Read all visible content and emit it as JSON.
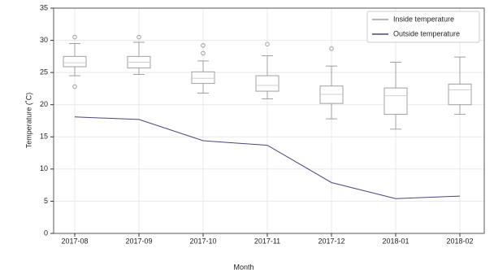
{
  "chart_data": {
    "type": "box",
    "xlabel": "Month",
    "ylabel": "Temperature (˚C)",
    "categories": [
      "2017-08",
      "2017-09",
      "2017-10",
      "2017-11",
      "2017-12",
      "2018-01",
      "2018-02"
    ],
    "ylim": [
      0,
      35
    ],
    "yticks": [
      0,
      5,
      10,
      15,
      20,
      25,
      30,
      35
    ],
    "grid": true,
    "legend": "upper right",
    "series": [
      {
        "name": "Inside temperature",
        "type": "box",
        "color": "#a0a0a0",
        "whislo": [
          24.5,
          24.7,
          21.8,
          20.9,
          17.8,
          16.2,
          18.5
        ],
        "q1": [
          25.9,
          25.7,
          23.3,
          22.1,
          20.2,
          18.5,
          20.0
        ],
        "med": [
          26.5,
          26.6,
          24.1,
          23.0,
          21.6,
          21.4,
          22.3
        ],
        "q3": [
          27.5,
          27.5,
          25.1,
          24.5,
          22.9,
          22.6,
          23.2
        ],
        "whishi": [
          29.5,
          29.7,
          26.8,
          27.6,
          26.0,
          26.6,
          27.4
        ],
        "fliers": [
          [
            30.5,
            22.8
          ],
          [
            30.5
          ],
          [
            29.2,
            28.0
          ],
          [
            29.4
          ],
          [
            28.7
          ],
          [],
          []
        ]
      },
      {
        "name": "Outside temperature",
        "type": "line",
        "color": "#4a4580",
        "values": [
          18.1,
          17.7,
          14.4,
          13.7,
          7.9,
          5.4,
          5.8
        ]
      }
    ]
  }
}
